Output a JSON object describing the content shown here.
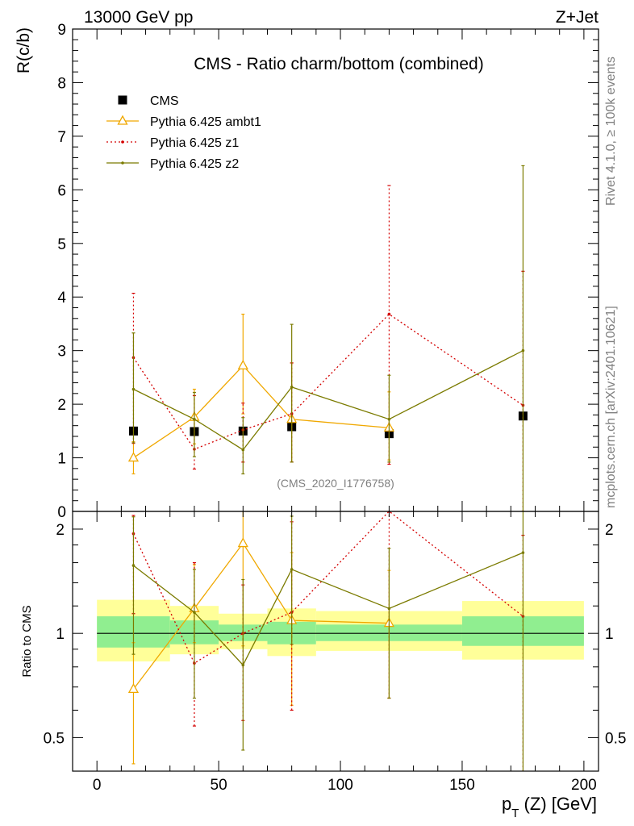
{
  "header": {
    "energy": "13000 GeV pp",
    "process": "Z+Jet",
    "side_rivet": "Rivet 4.1.0, ≥ 100k events",
    "side_mcplots": "mcplots.cern.ch [arXiv:2401.10621]"
  },
  "chart_data": [
    {
      "panel": "main",
      "type": "scatter",
      "title": "CMS - Ratio charm/bottom (combined)",
      "ylabel": "R(c/b)",
      "xlim": [
        -10,
        206
      ],
      "ylim": [
        0,
        9
      ],
      "xticks": [
        0,
        50,
        100,
        150,
        200
      ],
      "yticks": [
        0,
        1,
        2,
        3,
        4,
        5,
        6,
        7,
        8,
        9
      ],
      "ytick_labels": [
        "0",
        "1",
        "2",
        "3",
        "4",
        "5",
        "6",
        "7",
        "8",
        "9"
      ],
      "analysis_tag": "(CMS_2020_I1776758)",
      "legend_position": "top-left",
      "series": [
        {
          "name": "CMS",
          "color": "#000000",
          "style": "square",
          "x": [
            15,
            40,
            60,
            80,
            120,
            175
          ],
          "y": [
            1.5,
            1.49,
            1.5,
            1.58,
            1.45,
            1.78
          ]
        },
        {
          "name": "Pythia 6.425 ambt1",
          "color": "#f0a800",
          "style": "triangle",
          "x": [
            15,
            40,
            60,
            80,
            120
          ],
          "y": [
            1.0,
            1.76,
            2.72,
            1.72,
            1.56
          ],
          "err_lo": [
            0.3,
            0.5,
            0.9,
            0.8,
            0.6
          ],
          "err_hi": [
            0.3,
            0.52,
            0.96,
            1.05,
            0.67
          ]
        },
        {
          "name": "Pythia 6.425 z1",
          "color": "#d40000",
          "style": "dotted",
          "x": [
            15,
            40,
            60,
            80,
            120,
            175
          ],
          "y": [
            2.87,
            1.16,
            1.52,
            1.82,
            3.68,
            1.98
          ],
          "err_lo": [
            1.6,
            0.37,
            0.6,
            0.9,
            2.8,
            1.98
          ],
          "err_hi": [
            1.2,
            1.0,
            0.5,
            0.95,
            2.4,
            2.5
          ]
        },
        {
          "name": "Pythia 6.425 z2",
          "color": "#7b7b00",
          "style": "dot",
          "x": [
            15,
            40,
            60,
            80,
            120,
            175
          ],
          "y": [
            2.28,
            1.72,
            1.15,
            2.32,
            1.72,
            3.0
          ],
          "err_lo": [
            1.0,
            0.7,
            0.45,
            1.4,
            0.8,
            3.0
          ],
          "err_hi": [
            1.05,
            0.5,
            0.6,
            1.17,
            0.82,
            3.45
          ]
        }
      ]
    },
    {
      "panel": "ratio",
      "type": "scatter",
      "ylabel": "Ratio to CMS",
      "xlabel": "p_T (Z) [GeV]",
      "xlabel_main": "p",
      "xlabel_sub": "T",
      "xlabel_rest": " (Z) [GeV]",
      "xlim": [
        -10,
        206
      ],
      "ylim": [
        0.4,
        2.25
      ],
      "ylog": true,
      "xticks": [
        0,
        50,
        100,
        150,
        200
      ],
      "xtick_labels": [
        "0",
        "50",
        "100",
        "150",
        "200"
      ],
      "yticks": [
        0.5,
        1,
        2
      ],
      "ytick_labels": [
        "0.5",
        "1",
        "2"
      ],
      "bands": [
        {
          "x_lo": 0,
          "x_hi": 30,
          "inner": [
            0.91,
            1.12
          ],
          "outer": [
            0.83,
            1.25
          ]
        },
        {
          "x_lo": 30,
          "x_hi": 50,
          "inner": [
            0.93,
            1.09
          ],
          "outer": [
            0.87,
            1.2
          ]
        },
        {
          "x_lo": 50,
          "x_hi": 70,
          "inner": [
            0.95,
            1.06
          ],
          "outer": [
            0.9,
            1.14
          ]
        },
        {
          "x_lo": 70,
          "x_hi": 90,
          "inner": [
            0.93,
            1.08
          ],
          "outer": [
            0.86,
            1.18
          ]
        },
        {
          "x_lo": 90,
          "x_hi": 150,
          "inner": [
            0.95,
            1.06
          ],
          "outer": [
            0.89,
            1.16
          ]
        },
        {
          "x_lo": 150,
          "x_hi": 200,
          "inner": [
            0.92,
            1.12
          ],
          "outer": [
            0.84,
            1.24
          ]
        }
      ],
      "band_colors": {
        "inner": "#90ee90",
        "outer": "#ffff99"
      },
      "series": [
        {
          "name": "Pythia 6.425 ambt1",
          "color": "#f0a800",
          "style": "triangle",
          "x": [
            15,
            40,
            60,
            80,
            120
          ],
          "y": [
            0.69,
            1.18,
            1.82,
            1.09,
            1.07
          ],
          "err_lo": [
            0.27,
            0.24,
            0.9,
            0.47,
            0.42
          ],
          "err_hi": [
            0.25,
            0.4,
            0.6,
            0.62,
            0.45
          ]
        },
        {
          "name": "Pythia 6.425 z1",
          "color": "#d40000",
          "style": "dotted",
          "x": [
            15,
            40,
            60,
            80,
            120,
            175
          ],
          "y": [
            1.94,
            0.82,
            1.0,
            1.15,
            2.3,
            1.12
          ],
          "err_lo": [
            0.8,
            0.28,
            0.44,
            0.55,
            1.65,
            0.8
          ],
          "err_hi": [
            0.25,
            0.78,
            0.38,
            0.95,
            0.1,
            0.8
          ]
        },
        {
          "name": "Pythia 6.425 z2",
          "color": "#7b7b00",
          "style": "dot",
          "x": [
            15,
            40,
            60,
            80,
            120,
            175
          ],
          "y": [
            1.57,
            1.15,
            0.81,
            1.53,
            1.18,
            1.71
          ],
          "err_lo": [
            0.7,
            0.5,
            0.35,
            0.6,
            0.53,
            1.4
          ],
          "err_hi": [
            0.6,
            0.38,
            0.62,
            0.65,
            0.58,
            0.6
          ]
        }
      ]
    }
  ]
}
